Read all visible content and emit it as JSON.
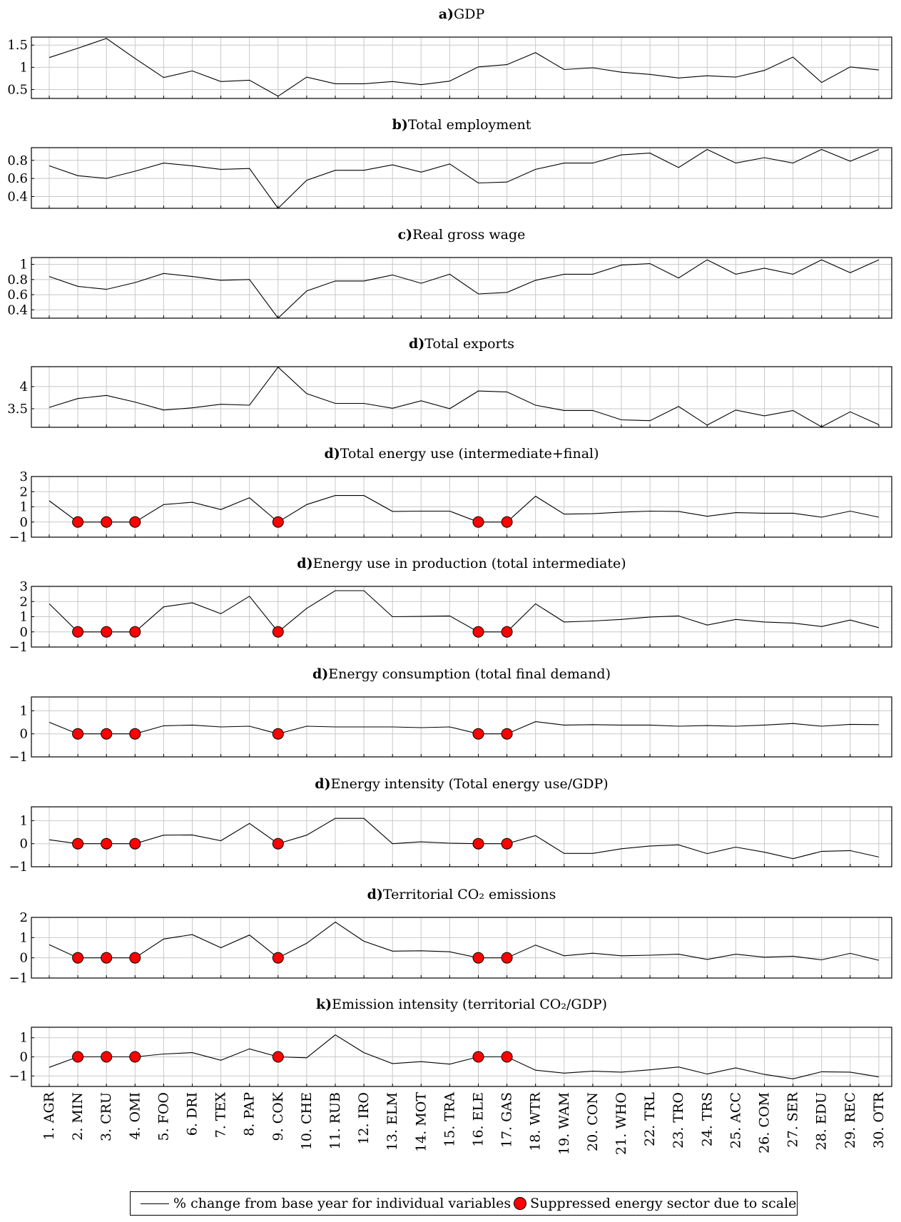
{
  "chart_data": {
    "type": "line",
    "sectors": [
      "1. AGR",
      "2. MIN",
      "3. CRU",
      "4. OMI",
      "5. FOO",
      "6. DRI",
      "7. TEX",
      "8. PAP",
      "9. COK",
      "10. CHE",
      "11. RUB",
      "12. IRO",
      "13. ELM",
      "14. MOT",
      "15. TRA",
      "16. ELE",
      "17. GAS",
      "18. WTR",
      "19. WAM",
      "20. CON",
      "21. WHO",
      "22. TRL",
      "23. TRO",
      "24. TRS",
      "25. ACC",
      "26. COM",
      "27. SER",
      "28. EDU",
      "29. REC",
      "30. OTR"
    ],
    "suppressed_sector_indices": [
      1,
      2,
      3,
      8,
      15,
      16
    ],
    "panels": [
      {
        "letter": "a)",
        "title": "GDP",
        "ylim": [
          0.3,
          1.68
        ],
        "yticks": [
          0.5,
          1,
          1.5
        ],
        "ytick_labels": [
          "0.5",
          "1",
          "1.5"
        ],
        "values": [
          1.22,
          1.43,
          1.65,
          1.2,
          0.77,
          0.92,
          0.68,
          0.71,
          0.35,
          0.78,
          0.63,
          0.63,
          0.68,
          0.61,
          0.69,
          1.01,
          1.06,
          1.33,
          0.95,
          0.99,
          0.89,
          0.84,
          0.76,
          0.81,
          0.78,
          0.93,
          1.23,
          0.66,
          1.01,
          0.94
        ],
        "suppressed": false
      },
      {
        "letter": "b)",
        "title": "Total employment",
        "ylim": [
          0.27,
          0.94
        ],
        "yticks": [
          0.4,
          0.6,
          0.8
        ],
        "ytick_labels": [
          "0.4",
          "0.6",
          "0.8"
        ],
        "values": [
          0.74,
          0.63,
          0.6,
          0.68,
          0.77,
          0.74,
          0.7,
          0.71,
          0.27,
          0.58,
          0.69,
          0.69,
          0.75,
          0.67,
          0.76,
          0.55,
          0.56,
          0.7,
          0.77,
          0.77,
          0.86,
          0.88,
          0.72,
          0.92,
          0.77,
          0.83,
          0.77,
          0.92,
          0.79,
          0.92
        ],
        "suppressed": false
      },
      {
        "letter": "c)",
        "title": "Real gross wage",
        "ylim": [
          0.29,
          1.09
        ],
        "yticks": [
          0.4,
          0.6,
          0.8,
          1
        ],
        "ytick_labels": [
          "0.4",
          "0.6",
          "0.8",
          "1"
        ],
        "values": [
          0.84,
          0.71,
          0.67,
          0.76,
          0.88,
          0.84,
          0.79,
          0.8,
          0.29,
          0.65,
          0.78,
          0.78,
          0.86,
          0.75,
          0.87,
          0.61,
          0.63,
          0.79,
          0.87,
          0.87,
          0.99,
          1.01,
          0.82,
          1.06,
          0.87,
          0.95,
          0.87,
          1.06,
          0.89,
          1.06
        ],
        "suppressed": false
      },
      {
        "letter": "d)",
        "title": "Total exports",
        "ylim": [
          3.08,
          4.45
        ],
        "yticks": [
          3.5,
          4
        ],
        "ytick_labels": [
          "3.5",
          "4"
        ],
        "values": [
          3.53,
          3.73,
          3.8,
          3.65,
          3.47,
          3.52,
          3.6,
          3.58,
          4.44,
          3.84,
          3.62,
          3.62,
          3.51,
          3.68,
          3.5,
          3.9,
          3.88,
          3.58,
          3.46,
          3.46,
          3.25,
          3.23,
          3.55,
          3.13,
          3.47,
          3.34,
          3.46,
          3.09,
          3.43,
          3.14
        ],
        "suppressed": false
      },
      {
        "letter": "d)",
        "title": "Total energy use (intermediate+final)",
        "ylim": [
          -1,
          3
        ],
        "yticks": [
          -1,
          0,
          1,
          2,
          3
        ],
        "ytick_labels": [
          "−1",
          "0",
          "1",
          "2",
          "3"
        ],
        "values": [
          1.4,
          0,
          0,
          0,
          1.15,
          1.3,
          0.82,
          1.6,
          0,
          1.15,
          1.75,
          1.75,
          0.7,
          0.72,
          0.72,
          0,
          0,
          1.7,
          0.52,
          0.55,
          0.65,
          0.72,
          0.7,
          0.38,
          0.62,
          0.58,
          0.58,
          0.32,
          0.72,
          0.32
        ],
        "suppressed": true
      },
      {
        "letter": "d)",
        "title": "Energy use in production (total intermediate)",
        "ylim": [
          -1,
          3
        ],
        "yticks": [
          -1,
          0,
          1,
          2,
          3
        ],
        "ytick_labels": [
          "−1",
          "0",
          "1",
          "2",
          "3"
        ],
        "values": [
          1.85,
          0,
          0,
          0,
          1.65,
          1.92,
          1.2,
          2.35,
          0,
          1.55,
          2.72,
          2.72,
          1.0,
          1.02,
          1.05,
          0,
          0,
          1.85,
          0.65,
          0.72,
          0.82,
          0.98,
          1.05,
          0.45,
          0.82,
          0.65,
          0.58,
          0.35,
          0.78,
          0.28
        ],
        "suppressed": true
      },
      {
        "letter": "d)",
        "title": "Energy consumption (total final demand)",
        "ylim": [
          -1,
          1.6
        ],
        "yticks": [
          -1,
          0,
          1
        ],
        "ytick_labels": [
          "−1",
          "0",
          "1"
        ],
        "values": [
          0.5,
          0,
          0,
          0,
          0.35,
          0.38,
          0.3,
          0.33,
          0,
          0.33,
          0.3,
          0.3,
          0.3,
          0.27,
          0.3,
          0,
          0,
          0.53,
          0.38,
          0.4,
          0.38,
          0.38,
          0.33,
          0.36,
          0.33,
          0.38,
          0.45,
          0.33,
          0.41,
          0.4
        ],
        "suppressed": true
      },
      {
        "letter": "d)",
        "title": "Energy intensity (Total energy use/GDP)",
        "ylim": [
          -1,
          1.6
        ],
        "yticks": [
          -1,
          0,
          1
        ],
        "ytick_labels": [
          "−1",
          "0",
          "1"
        ],
        "values": [
          0.17,
          0,
          0,
          0,
          0.37,
          0.38,
          0.13,
          0.88,
          0,
          0.37,
          1.1,
          1.1,
          0.0,
          0.08,
          0.02,
          0,
          0,
          0.35,
          -0.42,
          -0.42,
          -0.22,
          -0.1,
          -0.05,
          -0.43,
          -0.15,
          -0.37,
          -0.65,
          -0.33,
          -0.3,
          -0.58
        ],
        "suppressed": true
      },
      {
        "letter": "d)",
        "title": "Territorial CO₂ emissions",
        "ylim": [
          -1,
          2
        ],
        "yticks": [
          -1,
          0,
          1,
          2
        ],
        "ytick_labels": [
          "−1",
          "0",
          "1",
          "2"
        ],
        "values": [
          0.65,
          0,
          0,
          0,
          0.93,
          1.15,
          0.5,
          1.13,
          0,
          0.72,
          1.77,
          0.82,
          0.33,
          0.35,
          0.3,
          0,
          0,
          0.63,
          0.1,
          0.23,
          0.1,
          0.13,
          0.18,
          -0.08,
          0.18,
          0.03,
          0.08,
          -0.1,
          0.22,
          -0.12
        ],
        "suppressed": true
      },
      {
        "letter": "k)",
        "title": "Emission intensity (territorial CO₂/GDP)",
        "ylim": [
          -1.55,
          1.55
        ],
        "yticks": [
          -1,
          0,
          1
        ],
        "ytick_labels": [
          "−1",
          "0",
          "1"
        ],
        "values": [
          -0.55,
          0,
          0,
          0,
          0.15,
          0.22,
          -0.18,
          0.42,
          0,
          -0.05,
          1.15,
          0.22,
          -0.35,
          -0.25,
          -0.38,
          0,
          0,
          -0.7,
          -0.85,
          -0.75,
          -0.8,
          -0.68,
          -0.53,
          -0.9,
          -0.58,
          -0.92,
          -1.15,
          -0.78,
          -0.8,
          -1.05
        ],
        "suppressed": true
      }
    ],
    "legend": {
      "line_label": "% change from base year for individual variables",
      "marker_label": "Suppressed energy sector due to scale",
      "position": "bottom-center"
    },
    "grid": true,
    "colors": {
      "line": "#000000",
      "marker": "#ff0000",
      "grid": "#c8c8c8"
    }
  }
}
